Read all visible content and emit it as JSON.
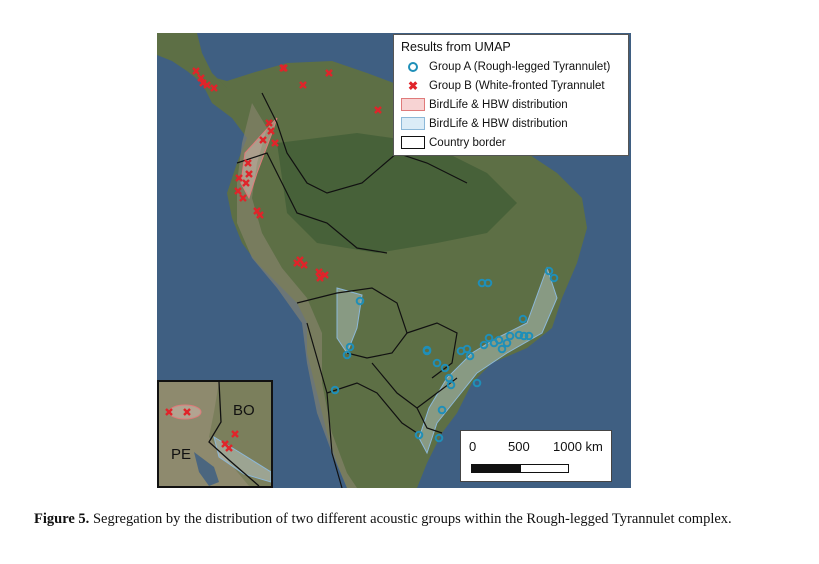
{
  "legend": {
    "title": "Results from UMAP",
    "group_a": "Group A (Rough-legged Tyrannulet)",
    "group_b": "Group B (White-fronted Tyrannulet",
    "range_red": "BirdLife & HBW distribution",
    "range_blue": "BirdLife & HBW distribution",
    "border": "Country border"
  },
  "colors": {
    "group_a": "#1f8fb8",
    "group_b": "#e0242a",
    "ocean": "#3f5f82",
    "land": "#5d6f45"
  },
  "scale_bar": {
    "label_0": "0",
    "label_500": "500",
    "label_1000": "1000 km"
  },
  "inset": {
    "label_bo": "BO",
    "label_pe": "PE"
  },
  "caption": {
    "label": "Figure 5.",
    "text": "Segregation by the distribution of two different acoustic groups within the Rough-legged Tyrannulet complex."
  }
}
